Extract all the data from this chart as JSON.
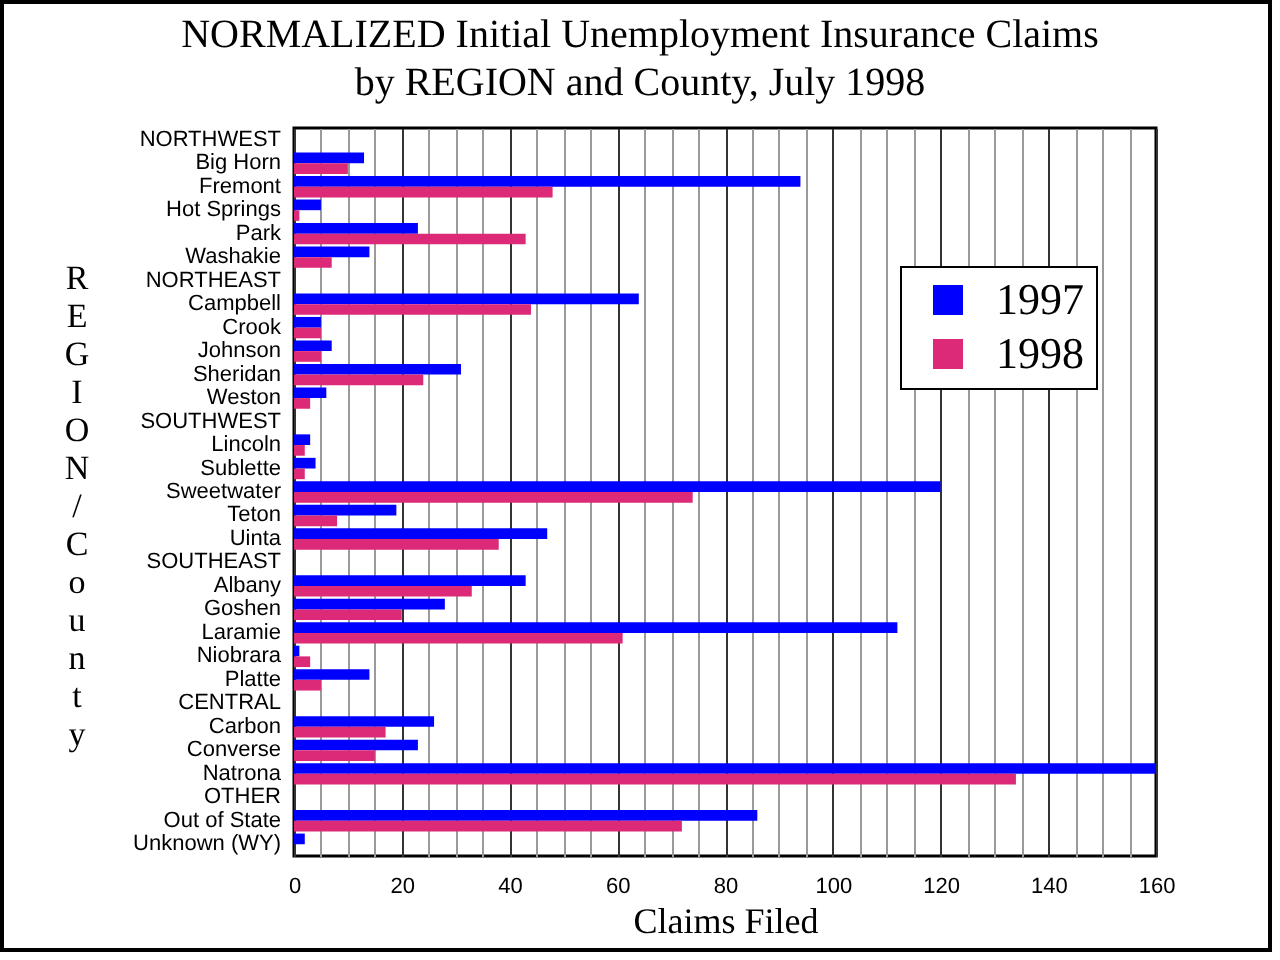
{
  "chart_data": {
    "type": "bar",
    "orientation": "horizontal",
    "title": "NORMALIZED Initial Unemployment Insurance Claims\nby REGION and County, July 1998",
    "xlabel": "Claims Filed",
    "ylabel": "REGION/County",
    "categories": [
      "NORTHWEST",
      "Big Horn",
      "Fremont",
      "Hot Springs",
      "Park",
      "Washakie",
      "NORTHEAST",
      "Campbell",
      "Crook",
      "Johnson",
      "Sheridan",
      "Weston",
      "SOUTHWEST",
      "Lincoln",
      "Sublette",
      "Sweetwater",
      "Teton",
      "Uinta",
      "SOUTHEAST",
      "Albany",
      "Goshen",
      "Laramie",
      "Niobrara",
      "Platte",
      "CENTRAL",
      "Carbon",
      "Converse",
      "Natrona",
      "OTHER",
      "Out of State",
      "Unknown (WY)"
    ],
    "series": [
      {
        "name": "1997",
        "color": "#0000ff",
        "values": [
          null,
          13,
          94,
          5,
          23,
          14,
          null,
          64,
          5,
          7,
          31,
          6,
          null,
          3,
          4,
          120,
          19,
          47,
          null,
          43,
          28,
          112,
          1,
          14,
          null,
          26,
          23,
          160,
          null,
          86,
          2
        ]
      },
      {
        "name": "1998",
        "color": "#dc2a78",
        "values": [
          null,
          10,
          48,
          1,
          43,
          7,
          null,
          44,
          5,
          5,
          24,
          3,
          null,
          2,
          2,
          74,
          8,
          38,
          null,
          33,
          20,
          61,
          3,
          5,
          null,
          17,
          15,
          134,
          null,
          72,
          null
        ]
      }
    ],
    "xlim": [
      0,
      160
    ],
    "xticks": [
      0,
      {
        "value": 5,
        "label": null
      },
      {
        "value": 10,
        "label": null
      },
      {
        "value": 15,
        "label": null
      },
      20,
      {
        "value": 25,
        "label": null
      },
      {
        "value": 30,
        "label": null
      },
      {
        "value": 35,
        "label": null
      },
      40,
      {
        "value": 45,
        "label": null
      },
      {
        "value": 50,
        "label": null
      },
      {
        "value": 55,
        "label": null
      },
      60,
      {
        "value": 65,
        "label": null
      },
      {
        "value": 70,
        "label": null
      },
      {
        "value": 75,
        "label": null
      },
      80,
      {
        "value": 85,
        "label": null
      },
      {
        "value": 90,
        "label": null
      },
      {
        "value": 95,
        "label": null
      },
      100,
      {
        "value": 105,
        "label": null
      },
      {
        "value": 110,
        "label": null
      },
      {
        "value": 115,
        "label": null
      },
      120,
      {
        "value": 125,
        "label": null
      },
      {
        "value": 130,
        "label": null
      },
      {
        "value": 135,
        "label": null
      },
      140,
      {
        "value": 145,
        "label": null
      },
      {
        "value": 150,
        "label": null
      },
      {
        "value": 155,
        "label": null
      },
      160
    ],
    "grid": "x",
    "legend": "top right"
  }
}
